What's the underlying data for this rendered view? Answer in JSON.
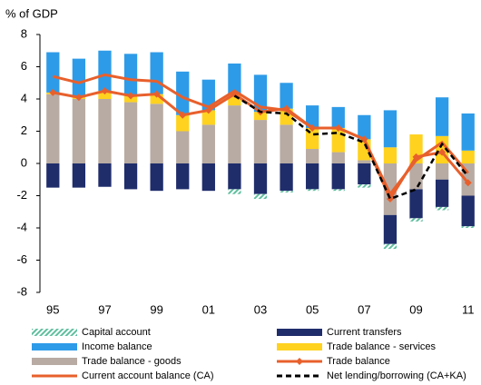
{
  "chart_data": {
    "type": "bar",
    "title": "% of GDP",
    "categories": [
      "95",
      null,
      "97",
      null,
      "99",
      null,
      "01",
      null,
      "03",
      null,
      "05",
      null,
      "07",
      null,
      "09",
      null,
      "11"
    ],
    "ylim": [
      -8,
      8
    ],
    "yticks": [
      -8,
      -6,
      -4,
      -2,
      0,
      2,
      4,
      6,
      8
    ],
    "series": [
      {
        "name": "Capital account",
        "type": "bar",
        "color": "#5fbf9f",
        "hatch": true,
        "values": [
          0,
          0,
          0,
          0,
          0,
          0,
          0,
          -0.3,
          -0.3,
          -0.1,
          -0.1,
          -0.1,
          -0.2,
          -0.3,
          -0.2,
          -0.2,
          -0.1
        ]
      },
      {
        "name": "Current transfers",
        "type": "bar",
        "color": "#1f2d6b",
        "values": [
          -1.5,
          -1.5,
          -1.45,
          -1.6,
          -1.7,
          -1.6,
          -1.7,
          -1.6,
          -1.9,
          -1.7,
          -1.6,
          -1.6,
          -1.3,
          -1.8,
          -1.8,
          -1.7,
          -1.9
        ]
      },
      {
        "name": "Income balance",
        "type": "bar",
        "color": "#2e9be8",
        "values": [
          2.5,
          2.4,
          2.5,
          2.6,
          2.6,
          2.7,
          1.9,
          1.9,
          2.3,
          1.6,
          1.4,
          1.3,
          1.5,
          2.3,
          0,
          2.4,
          2.3
        ]
      },
      {
        "name": " Trade balance - services",
        "type": "bar",
        "color": "#ffd21f",
        "values": [
          0.1,
          0.1,
          0.5,
          0.4,
          0.6,
          1.0,
          0.9,
          0.7,
          0.5,
          1.0,
          1.3,
          1.5,
          1.3,
          1.0,
          1.8,
          1.7,
          0.8
        ]
      },
      {
        "name": " Trade balance - goods",
        "type": "bar",
        "color": "#b8aba3",
        "values": [
          4.3,
          4.0,
          4.0,
          3.8,
          3.7,
          2.0,
          2.4,
          3.6,
          2.7,
          2.4,
          0.9,
          0.7,
          0.2,
          -3.2,
          -1.6,
          -1.0,
          -2.0
        ]
      },
      {
        "name": "Trade balance",
        "type": "line",
        "color": "#e8602c",
        "marker": "diamond",
        "values": [
          4.4,
          4.1,
          4.5,
          4.2,
          4.3,
          3.0,
          3.3,
          4.3,
          3.2,
          3.4,
          2.2,
          2.2,
          1.5,
          -2.2,
          0.4,
          0.7,
          -1.2
        ]
      },
      {
        "name": "Current account balance (CA)",
        "type": "line",
        "color": "#e8602c",
        "values": [
          5.4,
          5.0,
          5.5,
          5.2,
          5.1,
          4.1,
          3.5,
          4.5,
          3.5,
          3.3,
          2.2,
          2.2,
          1.5,
          -1.9,
          0.2,
          1.3,
          -0.6
        ]
      },
      {
        "name": "Net lending/borrowing (CA+KA)",
        "type": "line",
        "color": "#000000",
        "dash": true,
        "values": [
          null,
          null,
          null,
          null,
          null,
          null,
          null,
          4.2,
          3.2,
          3.1,
          1.8,
          1.9,
          1.3,
          -2.2,
          -1.6,
          1.2,
          -0.8
        ]
      }
    ]
  }
}
